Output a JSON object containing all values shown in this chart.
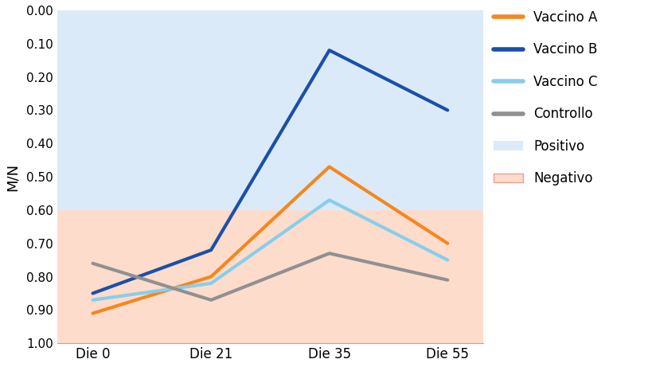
{
  "x_labels": [
    "Die 0",
    "Die 21",
    "Die 35",
    "Die 55"
  ],
  "x_positions": [
    0,
    1,
    2,
    3
  ],
  "vaccino_a": [
    0.91,
    0.8,
    0.47,
    0.7
  ],
  "vaccino_b": [
    0.85,
    0.72,
    0.12,
    0.3
  ],
  "vaccino_c": [
    0.87,
    0.82,
    0.57,
    0.75
  ],
  "controllo": [
    0.76,
    0.87,
    0.73,
    0.81
  ],
  "color_a": "#F5871F",
  "color_b": "#1B4FA8",
  "color_c": "#87CEEB",
  "color_ctrl": "#909090",
  "color_positive_bg": "#DAEAF8",
  "color_negative_bg": "#FDDCCC",
  "cutoff": 0.6,
  "ymin": 0.0,
  "ymax": 1.0,
  "ylabel": "M/N",
  "yticks": [
    0.0,
    0.1,
    0.2,
    0.3,
    0.4,
    0.5,
    0.6,
    0.7,
    0.8,
    0.9,
    1.0
  ],
  "linewidth": 3.0,
  "legend_vaccino_a": "Vaccino A",
  "legend_vaccino_b": "Vaccino B",
  "legend_vaccino_c": "Vaccino C",
  "legend_controllo": "Controllo",
  "legend_positivo": "Positivo",
  "legend_negativo": "Negativo"
}
